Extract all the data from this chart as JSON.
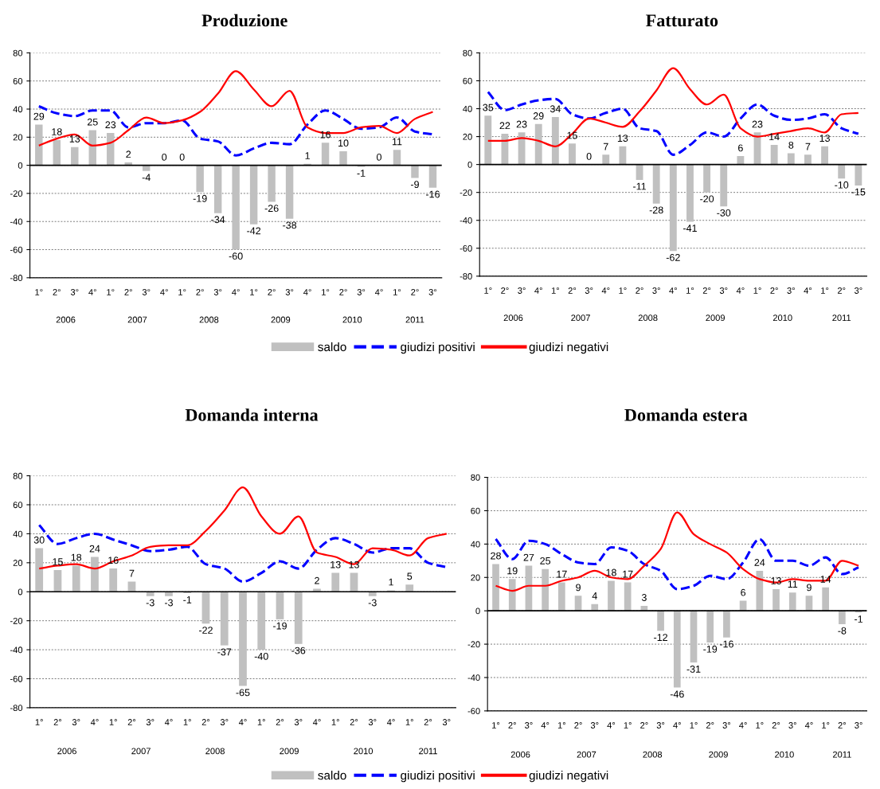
{
  "chart_data": [
    {
      "type": "bar",
      "title": "Produzione",
      "categories": [
        "1°",
        "2°",
        "3°",
        "4°",
        "1°",
        "2°",
        "3°",
        "4°",
        "1°",
        "2°",
        "3°",
        "4°",
        "1°",
        "2°",
        "3°",
        "4°",
        "1°",
        "2°",
        "3°",
        "4°",
        "1°",
        "2°",
        "3°"
      ],
      "annotations": [
        "2006",
        "2007",
        "2008",
        "2009",
        "2010",
        "2011"
      ],
      "ylim": [
        -80,
        80
      ],
      "yticks": [
        -80,
        -60,
        -40,
        -20,
        0,
        20,
        40,
        60,
        80
      ],
      "grid": "y",
      "legend": "bottom",
      "marker": "none",
      "series": [
        {
          "name": "saldo",
          "color": "#c0c0c0",
          "values": [
            29,
            18,
            13,
            25,
            23,
            2,
            -4,
            0,
            0,
            -19,
            -34,
            -60,
            -42,
            -26,
            -38,
            1,
            16,
            10,
            -1,
            0,
            11,
            -9,
            -16
          ],
          "value_labels": [
            "29",
            "18",
            "13",
            "25",
            "23",
            "2",
            "-4",
            "0",
            "0",
            "-19",
            "-34",
            "-60",
            "-42",
            "-26",
            "-38",
            "1",
            "16",
            "10",
            "-1",
            "0",
            "11",
            "-9",
            "-16"
          ]
        },
        {
          "name": "giudizi positivi",
          "type": "line",
          "line_style": "dashed",
          "color": "#0000ff",
          "values": [
            42,
            37,
            35,
            39,
            39,
            27,
            30,
            30,
            32,
            19,
            17,
            7,
            12,
            16,
            15,
            29,
            39,
            33,
            26,
            27,
            34,
            24,
            22
          ]
        },
        {
          "name": "giudizi negativi",
          "type": "line",
          "line_style": "solid",
          "color": "#ff0000",
          "values": [
            14,
            19,
            22,
            14,
            16,
            25,
            34,
            30,
            32,
            38,
            51,
            67,
            54,
            42,
            53,
            27,
            23,
            23,
            27,
            28,
            23,
            33,
            38
          ]
        }
      ]
    },
    {
      "type": "bar",
      "title": "Fatturato",
      "categories": [
        "1°",
        "2°",
        "3°",
        "4°",
        "1°",
        "2°",
        "3°",
        "4°",
        "1°",
        "2°",
        "3°",
        "4°",
        "1°",
        "2°",
        "3°",
        "4°",
        "1°",
        "2°",
        "3°",
        "4°",
        "1°",
        "2°",
        "3°"
      ],
      "annotations": [
        "2006",
        "2007",
        "2008",
        "2009",
        "2010",
        "2011"
      ],
      "ylim": [
        -80,
        80
      ],
      "yticks": [
        -80,
        -60,
        -40,
        -20,
        0,
        20,
        40,
        60,
        80
      ],
      "grid": "y",
      "marker": "none",
      "series": [
        {
          "color": "#c0c0c0",
          "values": [
            35,
            22,
            23,
            29,
            34,
            15,
            0,
            7,
            13,
            -11,
            -28,
            -62,
            -41,
            -20,
            -30,
            6,
            23,
            14,
            8,
            7,
            13,
            -10,
            -15
          ],
          "value_labels": [
            "35",
            "22",
            "23",
            "29",
            "34",
            "15",
            "0",
            "7",
            "13",
            "-11",
            "-28",
            "-62",
            "-41",
            "-20",
            "-30",
            "6",
            "23",
            "14",
            "8",
            "7",
            "13",
            "-10",
            "-15"
          ]
        },
        {
          "type": "line",
          "line_style": "dashed",
          "color": "#0000ff",
          "values": [
            52,
            39,
            43,
            46,
            47,
            36,
            33,
            37,
            40,
            26,
            24,
            7,
            14,
            23,
            20,
            33,
            43,
            35,
            32,
            33,
            36,
            26,
            22
          ]
        },
        {
          "type": "line",
          "line_style": "solid",
          "color": "#ff0000",
          "values": [
            17,
            17,
            19,
            17,
            13,
            22,
            33,
            30,
            27,
            38,
            53,
            69,
            54,
            43,
            50,
            26,
            20,
            22,
            24,
            26,
            23,
            36,
            37
          ]
        }
      ]
    },
    {
      "type": "bar",
      "title": "Domanda interna",
      "categories": [
        "1°",
        "2°",
        "3°",
        "4°",
        "1°",
        "2°",
        "3°",
        "4°",
        "1°",
        "2°",
        "3°",
        "4°",
        "1°",
        "2°",
        "3°",
        "4°",
        "1°",
        "2°",
        "3°",
        "4°",
        "1°",
        "2°",
        "3°"
      ],
      "annotations": [
        "2006",
        "2007",
        "2008",
        "2009",
        "2010",
        "2011"
      ],
      "ylim": [
        -80,
        80
      ],
      "yticks": [
        -80,
        -60,
        -40,
        -20,
        0,
        20,
        40,
        60,
        80
      ],
      "grid": "y",
      "legend": "bottom",
      "marker": "none",
      "series": [
        {
          "name": "saldo",
          "color": "#c0c0c0",
          "values": [
            30,
            15,
            18,
            24,
            16,
            7,
            -3,
            -3,
            -1,
            -22,
            -37,
            -65,
            -40,
            -19,
            -36,
            2,
            13,
            13,
            -3,
            1,
            5,
            null,
            null
          ],
          "value_labels": [
            "30",
            "15",
            "18",
            "24",
            "16",
            "7",
            "-3",
            "-3",
            "-1",
            "-22",
            "-37",
            "-65",
            "-40",
            "-19",
            "-36",
            "2",
            "13",
            "13",
            "-3",
            "1",
            "5",
            null,
            null
          ]
        },
        {
          "name": "giudizi positivi",
          "type": "line",
          "line_style": "dashed",
          "color": "#0000ff",
          "values": [
            46,
            33,
            37,
            40,
            36,
            32,
            28,
            29,
            31,
            19,
            16,
            7,
            13,
            21,
            16,
            29,
            37,
            33,
            27,
            30,
            30,
            20,
            17
          ]
        },
        {
          "name": "giudizi negativi",
          "type": "line",
          "line_style": "solid",
          "color": "#ff0000",
          "values": [
            16,
            18,
            19,
            16,
            21,
            25,
            31,
            32,
            32,
            42,
            56,
            72,
            52,
            40,
            52,
            27,
            24,
            19,
            30,
            29,
            25,
            37,
            40
          ]
        }
      ]
    },
    {
      "type": "bar",
      "title": "Domanda estera",
      "categories": [
        "1°",
        "2°",
        "3°",
        "4°",
        "1°",
        "2°",
        "3°",
        "4°",
        "1°",
        "2°",
        "3°",
        "4°",
        "1°",
        "2°",
        "3°",
        "4°",
        "1°",
        "2°",
        "3°",
        "4°",
        "1°",
        "2°",
        "3°"
      ],
      "annotations": [
        "2006",
        "2007",
        "2008",
        "2009",
        "2010",
        "2011"
      ],
      "ylim": [
        -60,
        80
      ],
      "yticks": [
        -60,
        -40,
        -20,
        0,
        20,
        40,
        60,
        80
      ],
      "grid": "y",
      "marker": "none",
      "series": [
        {
          "color": "#c0c0c0",
          "values": [
            28,
            19,
            27,
            25,
            17,
            9,
            4,
            18,
            17,
            3,
            -12,
            -46,
            -31,
            -19,
            -16,
            6,
            24,
            13,
            11,
            9,
            14,
            -8,
            -1
          ],
          "value_labels": [
            "28",
            "19",
            "27",
            "25",
            "17",
            "9",
            "4",
            "18",
            "17",
            "3",
            "-12",
            "-46",
            "-31",
            "-19",
            "-16",
            "6",
            "24",
            "13",
            "11",
            "9",
            "14",
            "-8",
            "-1"
          ]
        },
        {
          "type": "line",
          "line_style": "dashed",
          "color": "#0000ff",
          "values": [
            43,
            31,
            42,
            40,
            34,
            29,
            28,
            38,
            36,
            28,
            24,
            13,
            15,
            21,
            19,
            29,
            43,
            30,
            30,
            27,
            32,
            22,
            26
          ]
        },
        {
          "type": "line",
          "line_style": "solid",
          "color": "#ff0000",
          "values": [
            15,
            12,
            15,
            15,
            18,
            20,
            24,
            20,
            19,
            27,
            37,
            59,
            46,
            40,
            35,
            25,
            19,
            17,
            19,
            18,
            18,
            30,
            27
          ]
        }
      ]
    }
  ]
}
